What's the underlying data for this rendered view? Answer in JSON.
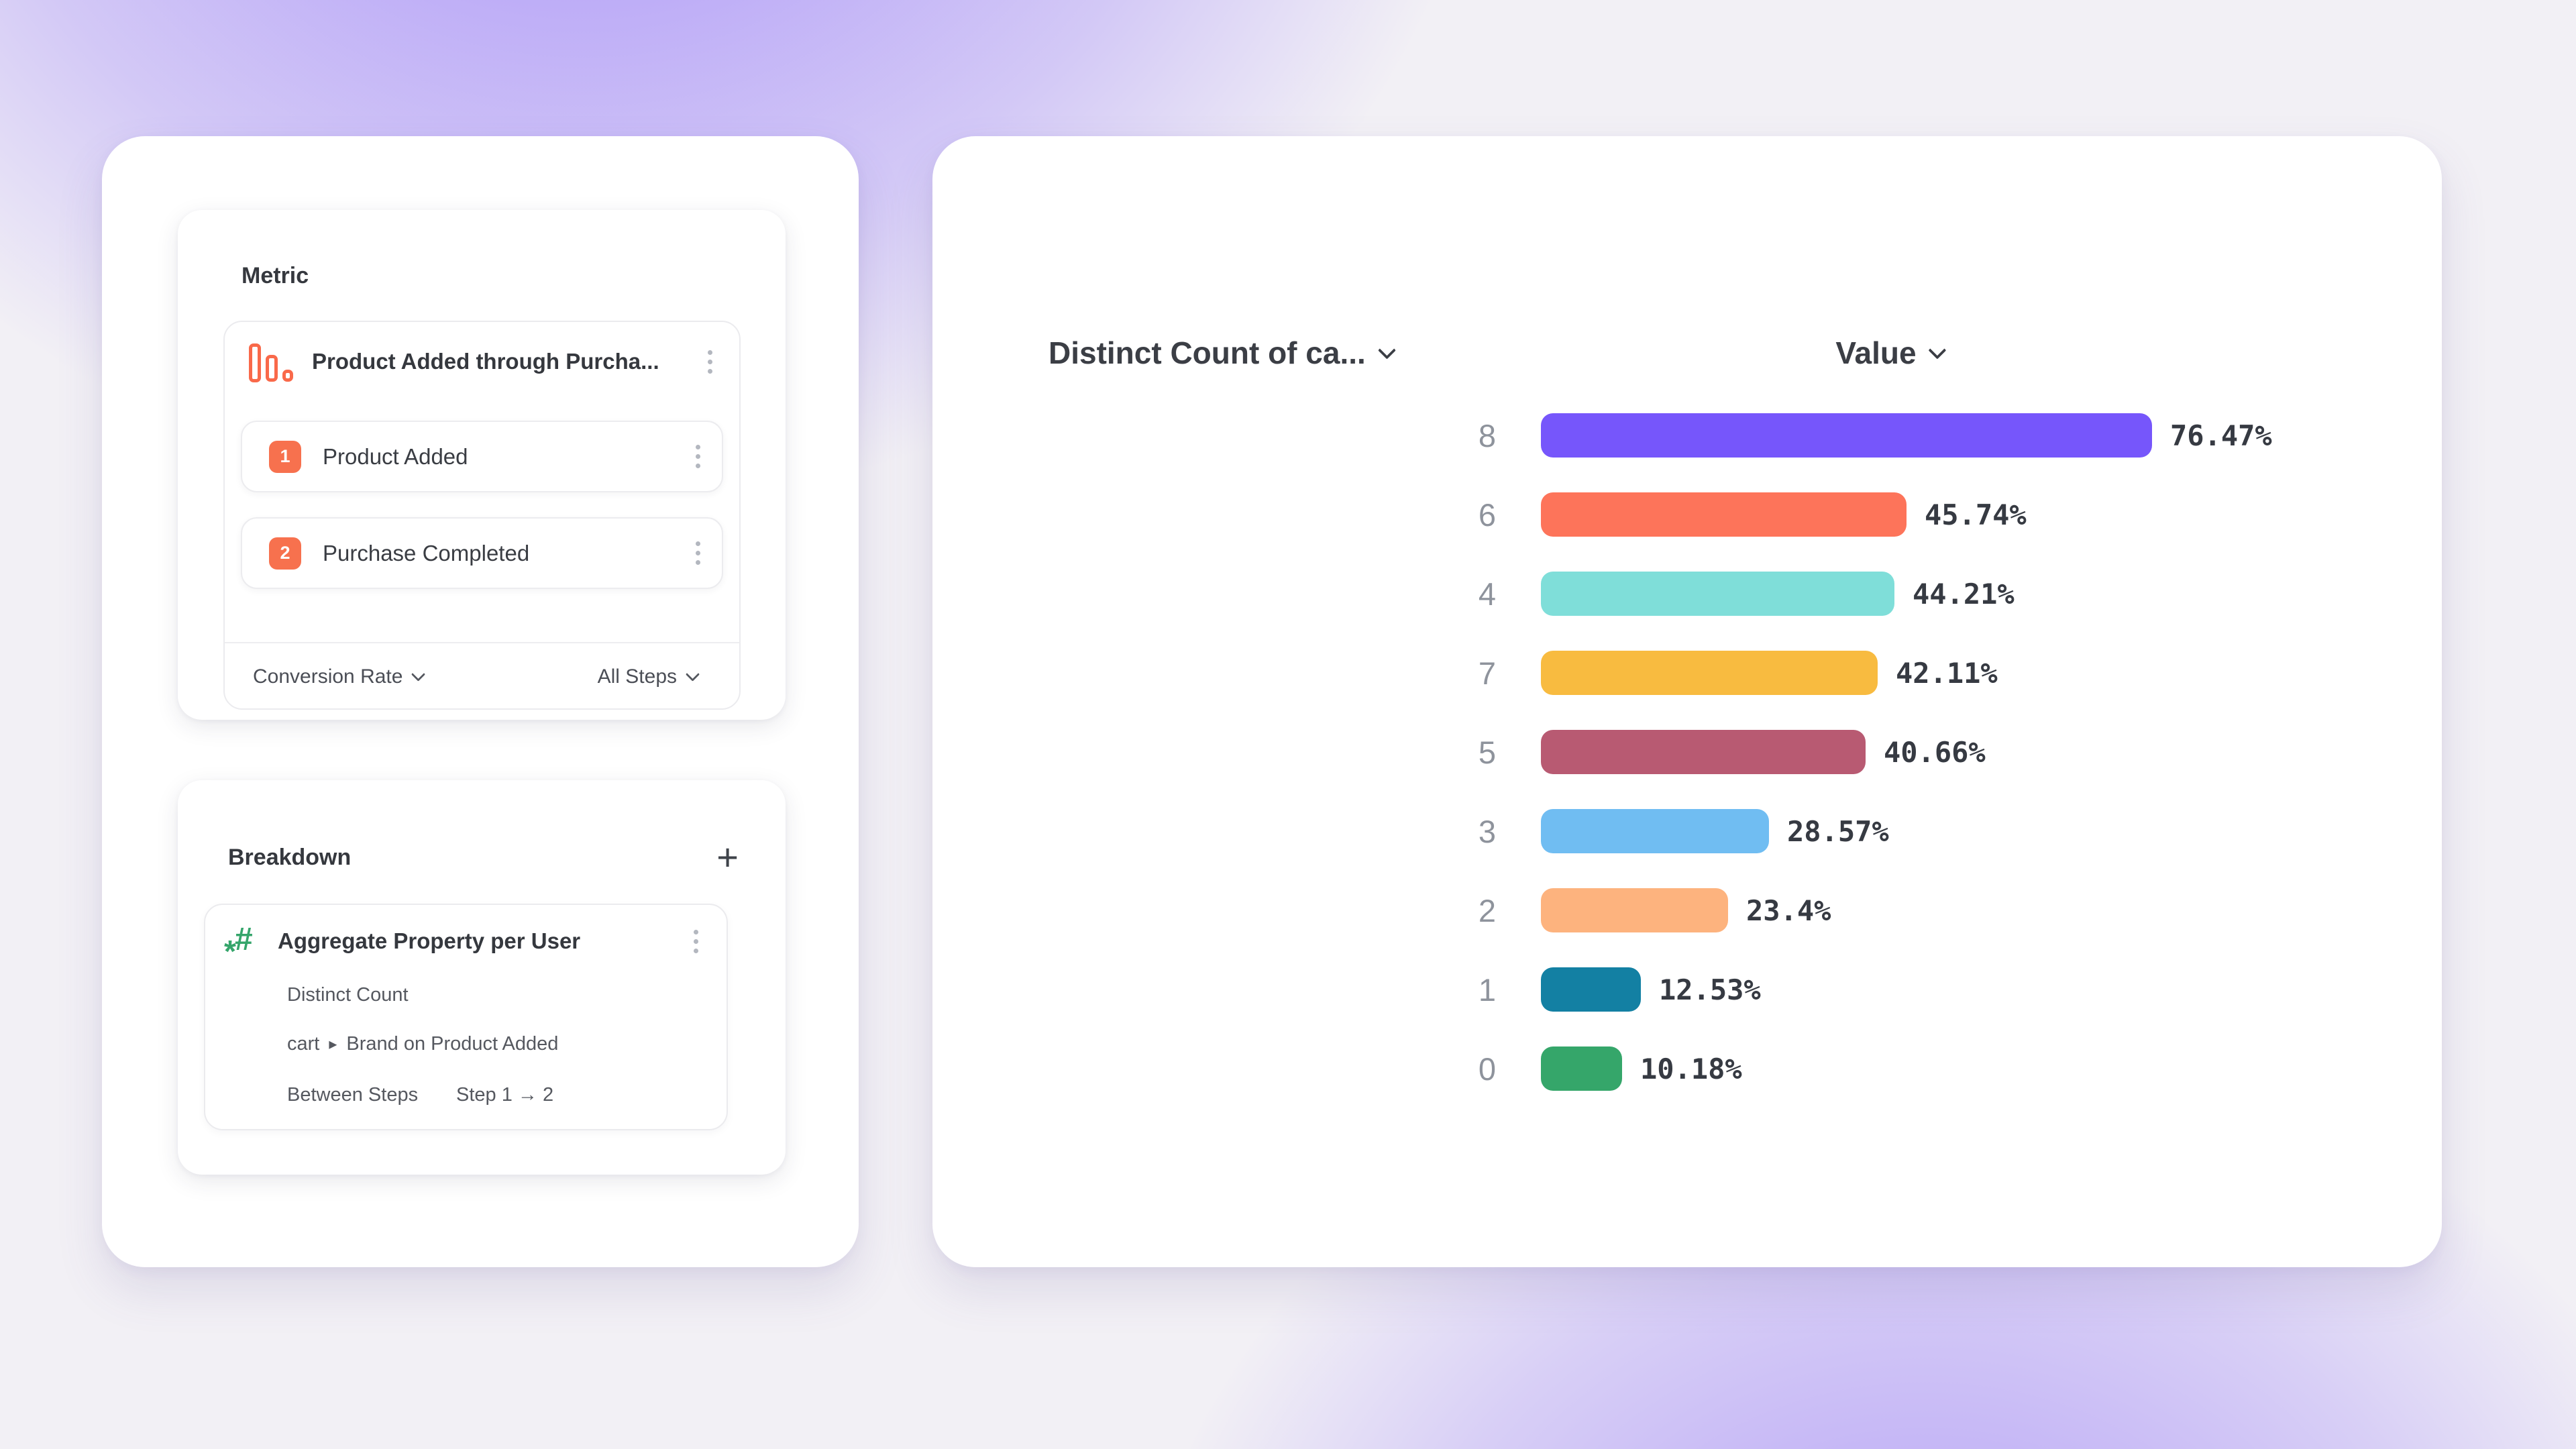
{
  "metric": {
    "title": "Metric",
    "funnel": {
      "title": "Product Added through Purcha...",
      "steps": [
        {
          "number": "1",
          "label": "Product Added"
        },
        {
          "number": "2",
          "label": "Purchase Completed"
        }
      ],
      "measure_label": "Conversion Rate",
      "steps_filter_label": "All Steps"
    }
  },
  "breakdown": {
    "title": "Breakdown",
    "add_button": "+",
    "property": {
      "title": "Aggregate Property per User",
      "aggregation": "Distinct Count",
      "path_prefix": "cart",
      "path_arrow": "▸",
      "path_suffix": "Brand on Product Added",
      "between_label": "Between Steps",
      "between_value": "Step 1 → 2"
    }
  },
  "chart_data": {
    "type": "bar",
    "orientation": "horizontal",
    "column1_header": "Distinct Count of ca...",
    "column2_header": "Value",
    "categories": [
      "8",
      "6",
      "4",
      "7",
      "5",
      "3",
      "2",
      "1",
      "0"
    ],
    "values": [
      76.47,
      45.74,
      44.21,
      42.11,
      40.66,
      28.57,
      23.4,
      12.53,
      10.18
    ],
    "value_labels": [
      "76.47%",
      "45.74%",
      "44.21%",
      "42.11%",
      "40.66%",
      "28.57%",
      "23.4%",
      "12.53%",
      "10.18%"
    ],
    "bar_colors": [
      "#7656fb",
      "#fd745a",
      "#7fded9",
      "#f8bb40",
      "#b85a72",
      "#70bdf2",
      "#fdb37e",
      "#1380a3",
      "#35a66a"
    ],
    "xlim": [
      0,
      100
    ],
    "grid": false,
    "legend": "none"
  },
  "colors": {
    "accent_orange": "#f7714e",
    "funnel_icon_orange": "#f9694a",
    "hash_icon_green": "#35a56b",
    "background_glow_purple": "#8260f8",
    "card_white": "#ffffff"
  }
}
